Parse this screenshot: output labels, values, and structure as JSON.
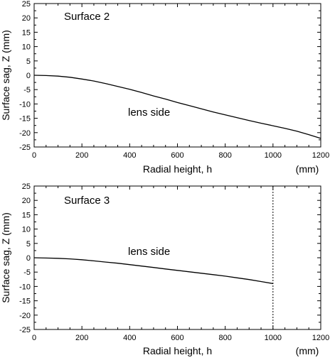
{
  "colors": {
    "background": "#ffffff",
    "line": "#000000"
  },
  "chart_data": [
    {
      "type": "line",
      "annotations": [
        "Surface 2",
        "lens side"
      ],
      "xlabel": "Radial height, h",
      "xunit": "(mm)",
      "ylabel": "Surface sag, Z  (mm)",
      "xlim": [
        0,
        1200
      ],
      "ylim": [
        -25,
        25
      ],
      "xticks": [
        "0",
        "200",
        "400",
        "600",
        "800",
        "1000",
        "1200"
      ],
      "yticks": [
        "-25",
        "-20",
        "-15",
        "-10",
        "-5",
        "0",
        "5",
        "10",
        "15",
        "20",
        "25"
      ],
      "grid": false,
      "x": [
        0,
        50,
        100,
        150,
        200,
        250,
        300,
        350,
        400,
        450,
        500,
        550,
        600,
        650,
        700,
        750,
        800,
        850,
        900,
        950,
        1000,
        1050,
        1100,
        1150,
        1200
      ],
      "y": [
        0,
        -0.1,
        -0.3,
        -0.7,
        -1.3,
        -2.0,
        -2.9,
        -3.9,
        -4.9,
        -6.0,
        -7.2,
        -8.3,
        -9.5,
        -10.6,
        -11.7,
        -12.8,
        -13.8,
        -14.8,
        -15.8,
        -16.7,
        -17.6,
        -18.5,
        -19.5,
        -20.7,
        -22.0
      ],
      "vline": null
    },
    {
      "type": "line",
      "annotations": [
        "Surface 3",
        "lens side"
      ],
      "xlabel": "Radial height, h",
      "xunit": "(mm)",
      "ylabel": "Surface sag, Z  (mm)",
      "xlim": [
        0,
        1200
      ],
      "ylim": [
        -25,
        25
      ],
      "xticks": [
        "0",
        "200",
        "400",
        "600",
        "800",
        "1000",
        "1200"
      ],
      "yticks": [
        "-25",
        "-20",
        "-15",
        "-10",
        "-5",
        "0",
        "5",
        "10",
        "15",
        "20",
        "25"
      ],
      "grid": false,
      "x": [
        0,
        50,
        100,
        150,
        200,
        250,
        300,
        350,
        400,
        450,
        500,
        550,
        600,
        650,
        700,
        750,
        800,
        850,
        900,
        950,
        1000
      ],
      "y": [
        0,
        -0.1,
        -0.2,
        -0.4,
        -0.7,
        -1.1,
        -1.5,
        -1.9,
        -2.4,
        -2.9,
        -3.4,
        -3.9,
        -4.4,
        -4.9,
        -5.4,
        -5.9,
        -6.4,
        -7.0,
        -7.6,
        -8.3,
        -9.0
      ],
      "vline": 1000
    }
  ]
}
